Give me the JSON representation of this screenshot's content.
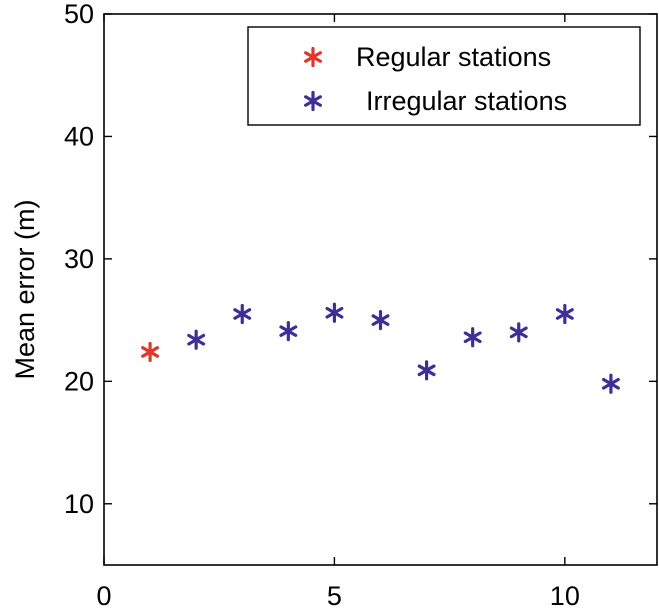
{
  "chart_data": {
    "type": "scatter",
    "title": "",
    "xlabel": "",
    "ylabel": "Mean error (m)",
    "xlim": [
      0,
      12
    ],
    "ylim": [
      5,
      50
    ],
    "xticks": [
      0,
      5,
      10
    ],
    "yticks": [
      10,
      20,
      30,
      40,
      50
    ],
    "grid": false,
    "legend_position": "top-right",
    "marker": "asterisk",
    "series": [
      {
        "name": "Regular stations",
        "color": "#e0362c",
        "points": [
          {
            "x": 1,
            "y": 22.4
          }
        ]
      },
      {
        "name": "Irregular stations",
        "color": "#3d2f96",
        "points": [
          {
            "x": 2,
            "y": 23.4
          },
          {
            "x": 3,
            "y": 25.5
          },
          {
            "x": 4,
            "y": 24.1
          },
          {
            "x": 5,
            "y": 25.6
          },
          {
            "x": 6,
            "y": 25.0
          },
          {
            "x": 7,
            "y": 20.9
          },
          {
            "x": 8,
            "y": 23.6
          },
          {
            "x": 9,
            "y": 24.0
          },
          {
            "x": 10,
            "y": 25.5
          },
          {
            "x": 11,
            "y": 19.8
          }
        ]
      }
    ]
  }
}
